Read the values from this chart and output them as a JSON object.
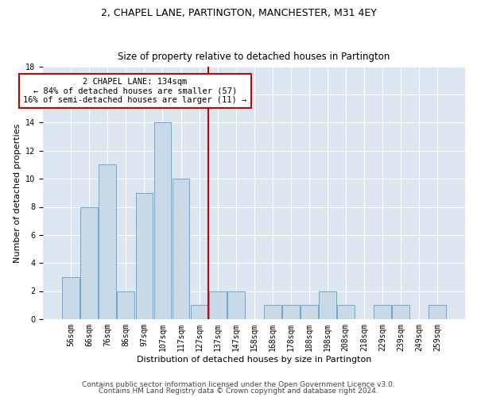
{
  "title": "2, CHAPEL LANE, PARTINGTON, MANCHESTER, M31 4EY",
  "subtitle": "Size of property relative to detached houses in Partington",
  "xlabel": "Distribution of detached houses by size in Partington",
  "ylabel": "Number of detached properties",
  "bin_labels": [
    "56sqm",
    "66sqm",
    "76sqm",
    "86sqm",
    "97sqm",
    "107sqm",
    "117sqm",
    "127sqm",
    "137sqm",
    "147sqm",
    "158sqm",
    "168sqm",
    "178sqm",
    "188sqm",
    "198sqm",
    "208sqm",
    "218sqm",
    "229sqm",
    "239sqm",
    "249sqm",
    "259sqm"
  ],
  "bar_values": [
    3,
    8,
    11,
    2,
    9,
    14,
    10,
    1,
    2,
    2,
    0,
    1,
    1,
    1,
    2,
    1,
    0,
    1,
    1,
    0,
    1
  ],
  "bar_color": "#c9d9e8",
  "bar_edge_color": "#6fa8d0",
  "vline_x": 7.5,
  "vline_color": "#cc0000",
  "annotation_text": "2 CHAPEL LANE: 134sqm\n← 84% of detached houses are smaller (57)\n16% of semi-detached houses are larger (11) →",
  "annotation_box_color": "#ffffff",
  "annotation_box_edge": "#cc0000",
  "ylim": [
    0,
    18
  ],
  "yticks": [
    0,
    2,
    4,
    6,
    8,
    10,
    12,
    14,
    16,
    18
  ],
  "footer1": "Contains HM Land Registry data © Crown copyright and database right 2024.",
  "footer2": "Contains public sector information licensed under the Open Government Licence v3.0.",
  "plot_bg_color": "#dce6f0",
  "title_fontsize": 9,
  "subtitle_fontsize": 8.5,
  "xlabel_fontsize": 8,
  "ylabel_fontsize": 8,
  "tick_fontsize": 7,
  "annotation_fontsize": 7.5,
  "footer_fontsize": 6.5
}
